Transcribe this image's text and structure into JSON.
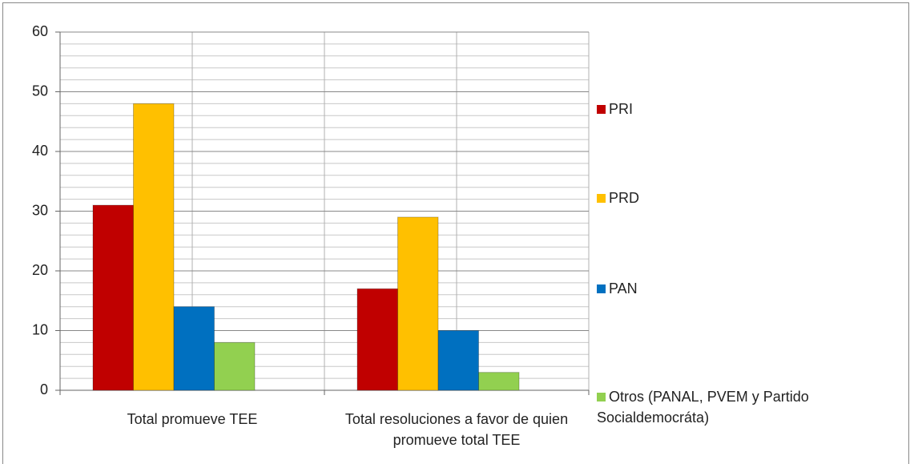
{
  "chart_data": {
    "type": "bar",
    "categories": [
      "Total promueve TEE",
      "Total resoluciones a favor de quien promueve total TEE"
    ],
    "series": [
      {
        "name": "PRI",
        "color": "#c00000",
        "values": [
          31,
          17
        ]
      },
      {
        "name": "PRD",
        "color": "#ffc000",
        "values": [
          48,
          29
        ]
      },
      {
        "name": "PAN",
        "color": "#0070c0",
        "values": [
          14,
          10
        ]
      },
      {
        "name": "Otros (PANAL, PVEM y Partido Socialdemocráta)",
        "color": "#92d050",
        "values": [
          8,
          3
        ]
      }
    ],
    "ylim": [
      0,
      60
    ],
    "yticks": [
      0,
      10,
      20,
      30,
      40,
      50,
      60
    ],
    "grid": true,
    "minor_grid_step": 2,
    "legend": "right"
  }
}
